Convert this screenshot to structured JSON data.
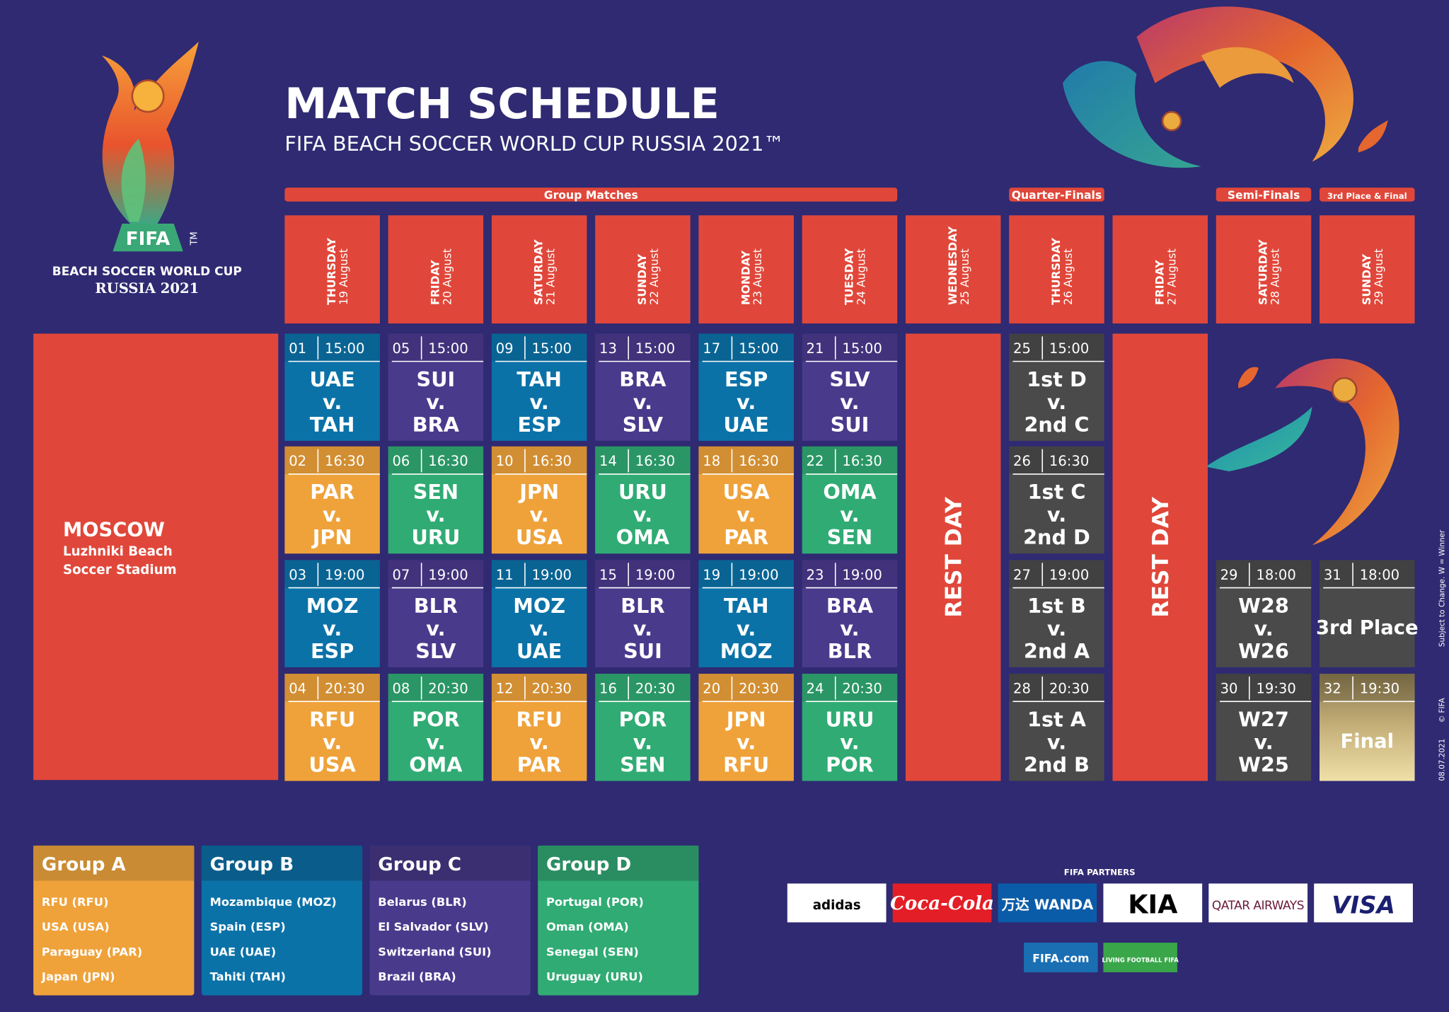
{
  "header": {
    "title": "MATCH SCHEDULE",
    "subtitle": "FIFA BEACH SOCCER WORLD CUP RUSSIA 2021™"
  },
  "logo": {
    "mark": "FIFA",
    "tm": "TM",
    "line1": "BEACH SOCCER WORLD CUP",
    "line2": "RUSSIA 2021"
  },
  "stages": [
    {
      "label": "Group Matches"
    },
    {
      "label": "Quarter-Finals"
    },
    {
      "label": "Semi-Finals"
    },
    {
      "label": "3rd Place & Final"
    }
  ],
  "venue": {
    "city": "MOSCOW",
    "stadium": [
      "Luzhniki Beach",
      "Soccer Stadium"
    ]
  },
  "knockout_color": "#4a4a4a",
  "days": [
    {
      "weekday": "THURSDAY",
      "date": "19 August",
      "matches": [
        {
          "no": "01",
          "time": "15:00",
          "teams": [
            "UAE",
            "v.",
            "TAH"
          ],
          "group": "Group B"
        },
        {
          "no": "02",
          "time": "16:30",
          "teams": [
            "PAR",
            "v.",
            "JPN"
          ],
          "group": "Group A"
        },
        {
          "no": "03",
          "time": "19:00",
          "teams": [
            "MOZ",
            "v.",
            "ESP"
          ],
          "group": "Group B"
        },
        {
          "no": "04",
          "time": "20:30",
          "teams": [
            "RFU",
            "v.",
            "USA"
          ],
          "group": "Group A"
        }
      ]
    },
    {
      "weekday": "FRIDAY",
      "date": "20 August",
      "matches": [
        {
          "no": "05",
          "time": "15:00",
          "teams": [
            "SUI",
            "v.",
            "BRA"
          ],
          "group": "Group C"
        },
        {
          "no": "06",
          "time": "16:30",
          "teams": [
            "SEN",
            "v.",
            "URU"
          ],
          "group": "Group D"
        },
        {
          "no": "07",
          "time": "19:00",
          "teams": [
            "BLR",
            "v.",
            "SLV"
          ],
          "group": "Group C"
        },
        {
          "no": "08",
          "time": "20:30",
          "teams": [
            "POR",
            "v.",
            "OMA"
          ],
          "group": "Group D"
        }
      ]
    },
    {
      "weekday": "SATURDAY",
      "date": "21 August",
      "matches": [
        {
          "no": "09",
          "time": "15:00",
          "teams": [
            "TAH",
            "v.",
            "ESP"
          ],
          "group": "Group B"
        },
        {
          "no": "10",
          "time": "16:30",
          "teams": [
            "JPN",
            "v.",
            "USA"
          ],
          "group": "Group A"
        },
        {
          "no": "11",
          "time": "19:00",
          "teams": [
            "MOZ",
            "v.",
            "UAE"
          ],
          "group": "Group B"
        },
        {
          "no": "12",
          "time": "20:30",
          "teams": [
            "RFU",
            "v.",
            "PAR"
          ],
          "group": "Group A"
        }
      ]
    },
    {
      "weekday": "SUNDAY",
      "date": "22 August",
      "matches": [
        {
          "no": "13",
          "time": "15:00",
          "teams": [
            "BRA",
            "v.",
            "SLV"
          ],
          "group": "Group C"
        },
        {
          "no": "14",
          "time": "16:30",
          "teams": [
            "URU",
            "v.",
            "OMA"
          ],
          "group": "Group D"
        },
        {
          "no": "15",
          "time": "19:00",
          "teams": [
            "BLR",
            "v.",
            "SUI"
          ],
          "group": "Group C"
        },
        {
          "no": "16",
          "time": "20:30",
          "teams": [
            "POR",
            "v.",
            "SEN"
          ],
          "group": "Group D"
        }
      ]
    },
    {
      "weekday": "MONDAY",
      "date": "23 August",
      "matches": [
        {
          "no": "17",
          "time": "15:00",
          "teams": [
            "ESP",
            "v.",
            "UAE"
          ],
          "group": "Group B"
        },
        {
          "no": "18",
          "time": "16:30",
          "teams": [
            "USA",
            "v.",
            "PAR"
          ],
          "group": "Group A"
        },
        {
          "no": "19",
          "time": "19:00",
          "teams": [
            "TAH",
            "v.",
            "MOZ"
          ],
          "group": "Group B"
        },
        {
          "no": "20",
          "time": "20:30",
          "teams": [
            "JPN",
            "v.",
            "RFU"
          ],
          "group": "Group A"
        }
      ]
    },
    {
      "weekday": "TUESDAY",
      "date": "24 August",
      "matches": [
        {
          "no": "21",
          "time": "15:00",
          "teams": [
            "SLV",
            "v.",
            "SUI"
          ],
          "group": "Group C"
        },
        {
          "no": "22",
          "time": "16:30",
          "teams": [
            "OMA",
            "v.",
            "SEN"
          ],
          "group": "Group D"
        },
        {
          "no": "23",
          "time": "19:00",
          "teams": [
            "BRA",
            "v.",
            "BLR"
          ],
          "group": "Group C"
        },
        {
          "no": "24",
          "time": "20:30",
          "teams": [
            "URU",
            "v.",
            "POR"
          ],
          "group": "Group D"
        }
      ]
    },
    {
      "weekday": "WEDNESDAY",
      "date": "25 August",
      "rest_day": "REST DAY"
    },
    {
      "weekday": "THURSDAY",
      "date": "26 August",
      "matches": [
        {
          "no": "25",
          "time": "15:00",
          "teams": [
            "1st D",
            "v.",
            "2nd C"
          ]
        },
        {
          "no": "26",
          "time": "16:30",
          "teams": [
            "1st C",
            "v.",
            "2nd D"
          ]
        },
        {
          "no": "27",
          "time": "19:00",
          "teams": [
            "1st B",
            "v.",
            "2nd A"
          ]
        },
        {
          "no": "28",
          "time": "20:30",
          "teams": [
            "1st A",
            "v.",
            "2nd B"
          ]
        }
      ]
    },
    {
      "weekday": "FRIDAY",
      "date": "27 August",
      "rest_day": "REST DAY"
    },
    {
      "weekday": "SATURDAY",
      "date": "28 August",
      "matches": [
        null,
        null,
        {
          "no": "29",
          "time": "18:00",
          "teams": [
            "W28",
            "v.",
            "W26"
          ]
        },
        {
          "no": "30",
          "time": "19:30",
          "teams": [
            "W27",
            "v.",
            "W25"
          ]
        }
      ]
    },
    {
      "weekday": "SUNDAY",
      "date": "29 August",
      "matches": [
        null,
        null,
        {
          "no": "31",
          "time": "18:00",
          "teams": [
            "3rd Place"
          ]
        },
        {
          "no": "32",
          "time": "19:30",
          "teams": [
            "Final"
          ],
          "color": "gold"
        }
      ]
    }
  ],
  "groups": [
    {
      "name": "Group A",
      "color": "#efa23a",
      "header_color": "#c98b33",
      "teams": [
        "RFU (RFU)",
        "USA (USA)",
        "Paraguay (PAR)",
        "Japan (JPN)"
      ]
    },
    {
      "name": "Group B",
      "color": "#0b72a8",
      "header_color": "#0a5d8a",
      "teams": [
        "Mozambique (MOZ)",
        "Spain (ESP)",
        "UAE (UAE)",
        "Tahiti (TAH)"
      ]
    },
    {
      "name": "Group C",
      "color": "#4a3a8c",
      "header_color": "#3b2f72",
      "teams": [
        "Belarus (BLR)",
        "El Salvador (SLV)",
        "Switzerland (SUI)",
        "Brazil (BRA)"
      ]
    },
    {
      "name": "Group D",
      "color": "#30ab74",
      "header_color": "#2a8d61",
      "teams": [
        "Portugal (POR)",
        "Oman (OMA)",
        "Senegal (SEN)",
        "Uruguay (URU)"
      ]
    }
  ],
  "partners": {
    "title": "FIFA PARTNERS",
    "logos": [
      "adidas",
      "Coca-Cola",
      "万达 WANDA",
      "KIA",
      "QATAR AIRWAYS",
      "VISA"
    ],
    "links": [
      "FIFA.com",
      "LIVING FOOTBALL FIFA"
    ]
  },
  "side_note": {
    "text": "Subject to Change. W = Winner",
    "copyright": "© FIFA",
    "date": "08.07.2021"
  }
}
